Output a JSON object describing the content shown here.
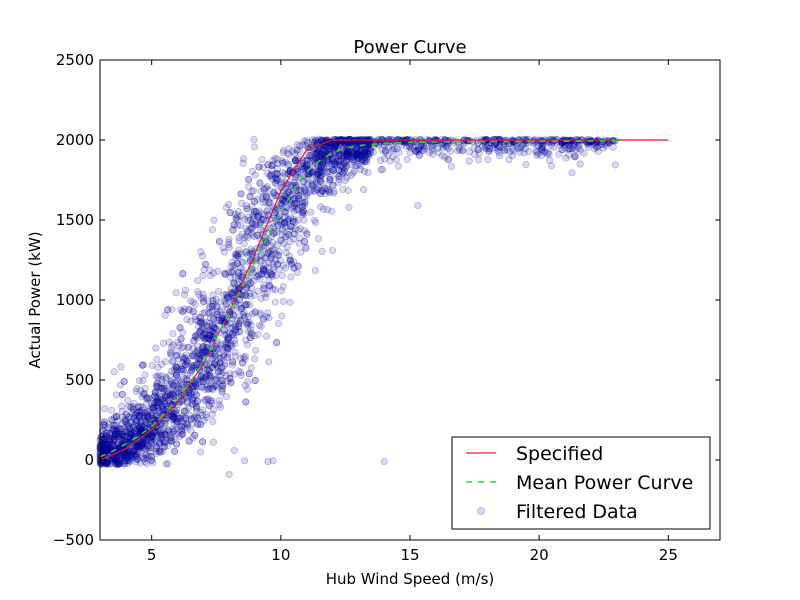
{
  "chart_data": {
    "type": "scatter",
    "title": "Power Curve",
    "xlabel": "Hub Wind Speed (m/s)",
    "ylabel": "Actual Power (kW)",
    "xlim": [
      3,
      27
    ],
    "ylim": [
      -500,
      2500
    ],
    "xticks": [
      5,
      10,
      15,
      20,
      25
    ],
    "yticks": [
      -500,
      0,
      500,
      1000,
      1500,
      2000,
      2500
    ],
    "grid": false,
    "legend_position": "lower-right",
    "series": [
      {
        "name": "Specified",
        "kind": "line",
        "color": "#e8192c",
        "style": "solid",
        "x": [
          3,
          4,
          5,
          6,
          7,
          8,
          9,
          10,
          11,
          12,
          13,
          14,
          15,
          16,
          17,
          18,
          19,
          20,
          21,
          22,
          23,
          24,
          25
        ],
        "y": [
          0,
          70,
          190,
          360,
          600,
          920,
          1290,
          1680,
          1940,
          2000,
          2000,
          2000,
          2000,
          2000,
          2000,
          2000,
          2000,
          2000,
          2000,
          2000,
          2000,
          2000,
          2000
        ]
      },
      {
        "name": "Mean Power Curve",
        "kind": "line",
        "color": "#22dd22",
        "style": "dashed",
        "x": [
          3,
          3.5,
          4,
          4.5,
          5,
          5.5,
          6,
          6.5,
          7,
          7.5,
          8,
          8.5,
          9,
          9.5,
          10,
          10.5,
          11,
          11.5,
          12,
          12.5,
          13,
          14,
          15,
          16,
          17,
          18,
          19,
          20,
          21,
          22,
          23
        ],
        "y": [
          20,
          55,
          100,
          150,
          210,
          290,
          380,
          490,
          610,
          760,
          920,
          1080,
          1240,
          1400,
          1550,
          1690,
          1800,
          1870,
          1920,
          1950,
          1965,
          1980,
          1985,
          1988,
          1990,
          1990,
          1990,
          1992,
          1992,
          1993,
          1995
        ]
      },
      {
        "name": "Filtered Data",
        "kind": "scatter",
        "color": "#0000bb",
        "alpha": 0.15,
        "x_range": [
          3,
          23
        ],
        "y_range": [
          -80,
          2010
        ]
      }
    ],
    "legend": [
      "Specified",
      "Mean Power Curve",
      "Filtered Data"
    ]
  }
}
